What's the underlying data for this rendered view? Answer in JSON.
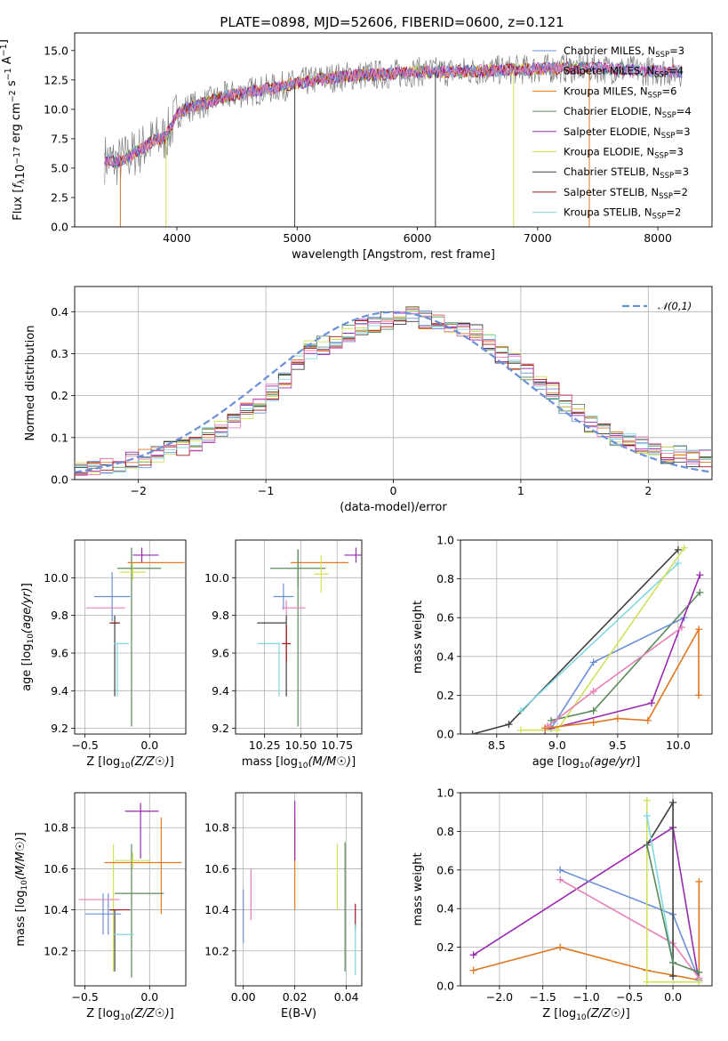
{
  "figure": {
    "title": "PLATE=0898, MJD=52606, FIBERID=0600, z=0.121"
  },
  "palette": [
    "#6b8fd8",
    "#e07820",
    "#5a8a5a",
    "#9a28b0",
    "#d4e05a",
    "#404040",
    "#a01818",
    "#80d8e0",
    "#e680b8",
    "#7f7f7f"
  ],
  "legend_spectrum": [
    {
      "name": "Chabrier MILES, N<sub>SSP</sub>=3",
      "text": "Chabrier MILES, N_SSP=3",
      "color": "#6b8fd8"
    },
    {
      "name": "Salpeter MILES, N_SSP=4",
      "text": "Salpeter MILES, N_SSP=4",
      "color": "#e680b8"
    },
    {
      "name": "Kroupa MILES, N_SSP=6",
      "text": "Kroupa MILES, N_SSP=6",
      "color": "#e07820"
    },
    {
      "name": "Chabrier ELODIE, N_SSP=4",
      "text": "Chabrier ELODIE, N_SSP=4",
      "color": "#5a8a5a"
    },
    {
      "name": "Salpeter ELODIE, N_SSP=3",
      "text": "Salpeter ELODIE, N_SSP=3",
      "color": "#9a28b0"
    },
    {
      "name": "Kroupa ELODIE, N_SSP=3",
      "text": "Kroupa ELODIE, N_SSP=3",
      "color": "#d4e05a"
    },
    {
      "name": "Chabrier STELIB, N_SSP=3",
      "text": "Chabrier STELIB, N_SSP=3",
      "color": "#404040"
    },
    {
      "name": "Salpeter STELIB, N_SSP=2",
      "text": "Salpeter STELIB, N_SSP=2",
      "color": "#a01818"
    },
    {
      "name": "Kroupa STELIB, N_SSP=2",
      "text": "Kroupa STELIB, N_SSP=2",
      "color": "#80d8e0"
    }
  ],
  "chart_data": [
    {
      "type": "line",
      "panel": "spectrum",
      "xlabel": "wavelength [Angstrom, rest frame]",
      "ylabel": "Flux [f_λ 10^-17 erg cm^-2 s^-1 A^-1]",
      "xlim": [
        3150,
        8450
      ],
      "ylim": [
        0,
        16.5
      ],
      "xticks": [
        4000,
        5000,
        6000,
        7000,
        8000
      ],
      "yticks": [
        0.0,
        2.5,
        5.0,
        7.5,
        10.0,
        12.5,
        15.0
      ],
      "continuum": {
        "x": [
          3400,
          3500,
          3600,
          3700,
          3800,
          3900,
          3950,
          4000,
          4100,
          4200,
          4400,
          4600,
          4800,
          5000,
          5200,
          5500,
          5800,
          6000,
          6300,
          6600,
          6900,
          7200,
          7500,
          7800,
          8200
        ],
        "y": [
          5.8,
          5.5,
          6.0,
          6.6,
          7.3,
          7.6,
          8.4,
          9.6,
          10.2,
          10.4,
          11.1,
          11.5,
          11.8,
          12.2,
          12.6,
          12.9,
          13.0,
          13.2,
          13.2,
          13.3,
          13.4,
          13.5,
          13.5,
          13.3,
          13.2
        ]
      },
      "drops": [
        {
          "x": 3530,
          "series": "Kroupa MILES"
        },
        {
          "x": 3910,
          "series": "Kroupa ELODIE"
        },
        {
          "x": 4980,
          "series": "Chabrier STELIB"
        },
        {
          "x": 6150,
          "series": "Chabrier STELIB"
        },
        {
          "x": 6800,
          "series": "Kroupa ELODIE"
        },
        {
          "x": 7430,
          "series": "Kroupa MILES"
        }
      ],
      "grid": false,
      "legend_position": "top-right"
    },
    {
      "type": "step",
      "panel": "residual-distribution",
      "xlabel": "(data-model)/error",
      "ylabel": "Normed distribution",
      "xlim": [
        -2.5,
        2.5
      ],
      "ylim": [
        0,
        0.46
      ],
      "xticks": [
        -2,
        -1,
        0,
        1,
        2
      ],
      "yticks": [
        0.0,
        0.1,
        0.2,
        0.3,
        0.4
      ],
      "bin_width": 0.1,
      "bins_start": -2.5,
      "base_values": [
        0.03,
        0.03,
        0.03,
        0.04,
        0.05,
        0.05,
        0.06,
        0.07,
        0.08,
        0.09,
        0.11,
        0.12,
        0.14,
        0.16,
        0.18,
        0.21,
        0.24,
        0.28,
        0.31,
        0.32,
        0.33,
        0.35,
        0.36,
        0.37,
        0.38,
        0.38,
        0.39,
        0.38,
        0.37,
        0.37,
        0.36,
        0.35,
        0.33,
        0.3,
        0.28,
        0.26,
        0.23,
        0.21,
        0.18,
        0.16,
        0.13,
        0.11,
        0.1,
        0.09,
        0.08,
        0.07,
        0.06,
        0.06,
        0.05,
        0.05
      ],
      "reference_curve": {
        "label": "𝒩(0,1)",
        "color": "#6b8fd8",
        "style": "dashed"
      },
      "grid": true,
      "legend_position": "top-right"
    },
    {
      "type": "errorbar",
      "panel": "age-vs-Z",
      "xlabel": "Z [log10(Z/Z_sun)]",
      "ylabel": "age [log10(age/yr)]",
      "xlim": [
        -0.58,
        0.28
      ],
      "ylim": [
        9.17,
        10.2
      ],
      "xticks": [
        -0.5,
        0.0
      ],
      "yticks": [
        9.2,
        9.4,
        9.6,
        9.8,
        10.0
      ],
      "points": [
        {
          "color": "#6b8fd8",
          "x": -0.29,
          "y": 9.9,
          "xerr": 0.14,
          "yerr": 0.13
        },
        {
          "color": "#e680b8",
          "x": -0.34,
          "y": 9.84,
          "xerr": 0.15,
          "yerr": 0.0
        },
        {
          "color": "#e07820",
          "x": 0.05,
          "y": 10.08,
          "xerr": 0.22,
          "yerr": 0.0
        },
        {
          "color": "#5a8a5a",
          "x": -0.08,
          "y": 10.05,
          "xerr": 0.17,
          "yerr": 0.0
        },
        {
          "color": "#9a28b0",
          "x": -0.03,
          "y": 10.12,
          "xerr": 0.1,
          "yerr": 0.0
        },
        {
          "color": "#d4e05a",
          "x": -0.13,
          "y": 10.03,
          "xerr": 0.1,
          "yerr": 0.04
        },
        {
          "color": "#404040",
          "x": -0.27,
          "y": 9.76,
          "xerr": 0.04,
          "yerr": 0.0
        },
        {
          "color": "#a01818",
          "x": -0.27,
          "y": 9.76,
          "xerr": 0.03,
          "yerr": 0.0
        },
        {
          "color": "#80d8e0",
          "x": -0.22,
          "y": 9.65,
          "xerr": 0.06,
          "yerr": 0.0
        }
      ],
      "vlines": [
        {
          "color": "#404040",
          "x": -0.27,
          "y0": 9.37,
          "y1": 9.8
        },
        {
          "color": "#80d8e0",
          "x": -0.25,
          "y0": 9.37,
          "y1": 9.65
        },
        {
          "color": "#5a8a5a",
          "x": -0.14,
          "y0": 9.21,
          "y1": 10.16
        },
        {
          "color": "#9a28b0",
          "x": -0.06,
          "y0": 10.08,
          "y1": 10.16
        }
      ],
      "grid": true
    },
    {
      "type": "errorbar",
      "panel": "age-vs-mass",
      "xlabel": "mass [log10(M/M_sun)]",
      "ylabel": "",
      "xlim": [
        10.05,
        10.92
      ],
      "ylim": [
        9.17,
        10.2
      ],
      "xticks": [
        10.25,
        10.5,
        10.75
      ],
      "yticks": [
        9.2,
        9.4,
        9.6,
        9.8,
        10.0
      ],
      "points": [
        {
          "color": "#6b8fd8",
          "x": 10.38,
          "y": 9.9,
          "xerr": 0.07,
          "yerr": 0.07
        },
        {
          "color": "#e680b8",
          "x": 10.45,
          "y": 9.84,
          "xerr": 0.08,
          "yerr": 0.0
        },
        {
          "color": "#e07820",
          "x": 10.63,
          "y": 10.08,
          "xerr": 0.2,
          "yerr": 0.0
        },
        {
          "color": "#5a8a5a",
          "x": 10.48,
          "y": 10.05,
          "xerr": 0.19,
          "yerr": 0.1
        },
        {
          "color": "#9a28b0",
          "x": 10.88,
          "y": 10.12,
          "xerr": 0.08,
          "yerr": 0.04
        },
        {
          "color": "#d4e05a",
          "x": 10.64,
          "y": 10.02,
          "xerr": 0.05,
          "yerr": 0.1
        },
        {
          "color": "#404040",
          "x": 10.3,
          "y": 9.76,
          "xerr": 0.1,
          "yerr": 0.0
        },
        {
          "color": "#a01818",
          "x": 10.4,
          "y": 9.65,
          "xerr": 0.03,
          "yerr": 0.1
        },
        {
          "color": "#80d8e0",
          "x": 10.28,
          "y": 9.65,
          "xerr": 0.08,
          "yerr": 0.0
        }
      ],
      "vlines": [
        {
          "color": "#404040",
          "x": 10.4,
          "y0": 9.37,
          "y1": 9.8
        },
        {
          "color": "#80d8e0",
          "x": 10.35,
          "y0": 9.37,
          "y1": 9.65
        },
        {
          "color": "#5a8a5a",
          "x": 10.48,
          "y0": 9.21,
          "y1": 10.15
        },
        {
          "color": "#e680b8",
          "x": 10.4,
          "y0": 9.8,
          "y1": 9.88
        }
      ],
      "grid": true
    },
    {
      "type": "line",
      "panel": "mass-weight-vs-age",
      "xlabel": "age [log10(age/yr)]",
      "ylabel": "mass weight",
      "xlim": [
        8.2,
        10.28
      ],
      "ylim": [
        0,
        1.0
      ],
      "xticks": [
        8.5,
        9.0,
        9.5,
        10.0
      ],
      "yticks": [
        0.0,
        0.2,
        0.4,
        0.6,
        0.8,
        1.0
      ],
      "series": [
        {
          "color": "#404040",
          "x": [
            8.3,
            8.6,
            10.0
          ],
          "y": [
            0.0,
            0.05,
            0.95
          ]
        },
        {
          "color": "#80d8e0",
          "x": [
            8.7,
            10.0
          ],
          "y": [
            0.12,
            0.88
          ]
        },
        {
          "color": "#5a8a5a",
          "x": [
            8.95,
            9.3,
            10.18
          ],
          "y": [
            0.07,
            0.12,
            0.73
          ]
        },
        {
          "color": "#6b8fd8",
          "x": [
            8.95,
            9.3,
            10.05
          ],
          "y": [
            0.03,
            0.37,
            0.6
          ]
        },
        {
          "color": "#9a28b0",
          "x": [
            8.9,
            9.78,
            10.18
          ],
          "y": [
            0.02,
            0.16,
            0.82
          ]
        },
        {
          "color": "#d4e05a",
          "x": [
            8.7,
            9.0,
            10.05
          ],
          "y": [
            0.02,
            0.02,
            0.96
          ]
        },
        {
          "color": "#e680b8",
          "x": [
            8.92,
            9.3,
            10.03
          ],
          "y": [
            0.04,
            0.22,
            0.55
          ]
        },
        {
          "color": "#e07820",
          "x": [
            8.9,
            9.3,
            9.5,
            9.75,
            10.17,
            10.17
          ],
          "y": [
            0.03,
            0.06,
            0.08,
            0.07,
            0.54,
            0.2
          ]
        }
      ],
      "grid": true
    },
    {
      "type": "errorbar",
      "panel": "mass-vs-Z",
      "xlabel": "Z [log10(Z/Z_sun)]",
      "ylabel": "mass [log10(M/M_sun)]",
      "xlim": [
        -0.58,
        0.28
      ],
      "ylim": [
        10.03,
        10.97
      ],
      "xticks": [
        -0.5,
        0.0
      ],
      "yticks": [
        10.2,
        10.4,
        10.6,
        10.8
      ],
      "points": [
        {
          "color": "#6b8fd8",
          "x": -0.36,
          "y": 10.38,
          "xerr": 0.14,
          "yerr": 0.1
        },
        {
          "color": "#e680b8",
          "x": -0.39,
          "y": 10.45,
          "xerr": 0.16,
          "yerr": 0.0
        },
        {
          "color": "#e07820",
          "x": -0.05,
          "y": 10.63,
          "xerr": 0.3,
          "yerr": 0.0
        },
        {
          "color": "#5a8a5a",
          "x": -0.08,
          "y": 10.48,
          "xerr": 0.19,
          "yerr": 0.0
        },
        {
          "color": "#9a28b0",
          "x": -0.06,
          "y": 10.88,
          "xerr": 0.13,
          "yerr": 0.0
        },
        {
          "color": "#d4e05a",
          "x": -0.13,
          "y": 10.64,
          "xerr": 0.14,
          "yerr": 0.04
        },
        {
          "color": "#404040",
          "x": -0.27,
          "y": 10.4,
          "xerr": 0.04,
          "yerr": 0.0
        },
        {
          "color": "#a01818",
          "x": -0.23,
          "y": 10.4,
          "xerr": 0.08,
          "yerr": 0.0
        },
        {
          "color": "#80d8e0",
          "x": -0.2,
          "y": 10.28,
          "xerr": 0.08,
          "yerr": 0.0
        }
      ],
      "vlines": [
        {
          "color": "#404040",
          "x": -0.27,
          "y0": 10.1,
          "y1": 10.4
        },
        {
          "color": "#d4e05a",
          "x": -0.28,
          "y0": 10.1,
          "y1": 10.72
        },
        {
          "color": "#5a8a5a",
          "x": -0.14,
          "y0": 10.07,
          "y1": 10.72
        },
        {
          "color": "#9a28b0",
          "x": -0.07,
          "y0": 10.65,
          "y1": 10.92
        },
        {
          "color": "#e07820",
          "x": 0.09,
          "y0": 10.38,
          "y1": 10.85
        },
        {
          "color": "#6b8fd8",
          "x": -0.32,
          "y0": 10.28,
          "y1": 10.48
        }
      ],
      "grid": true
    },
    {
      "type": "errorbar",
      "panel": "mass-vs-EBV",
      "xlabel": "E(B-V)",
      "ylabel": "",
      "xlim": [
        -0.003,
        0.046
      ],
      "ylim": [
        10.03,
        10.97
      ],
      "xticks": [
        0.0,
        0.02,
        0.04
      ],
      "yticks": [
        10.2,
        10.4,
        10.6,
        10.8
      ],
      "vlines": [
        {
          "color": "#6b8fd8",
          "x": 0.0,
          "y0": 10.24,
          "y1": 10.5
        },
        {
          "color": "#e680b8",
          "x": 0.003,
          "y0": 10.35,
          "y1": 10.6
        },
        {
          "color": "#e07820",
          "x": 0.02,
          "y0": 10.4,
          "y1": 10.85
        },
        {
          "color": "#9a28b0",
          "x": 0.02,
          "y0": 10.64,
          "y1": 10.93
        },
        {
          "color": "#d4e05a",
          "x": 0.0365,
          "y0": 10.4,
          "y1": 10.72
        },
        {
          "color": "#5a8a5a",
          "x": 0.0395,
          "y0": 10.1,
          "y1": 10.73
        },
        {
          "color": "#a01818",
          "x": 0.0435,
          "y0": 10.3,
          "y1": 10.43
        },
        {
          "color": "#80d8e0",
          "x": 0.0435,
          "y0": 10.08,
          "y1": 10.33
        }
      ],
      "grid": true
    },
    {
      "type": "line",
      "panel": "mass-weight-vs-Z",
      "xlabel": "Z [log10(Z/Z_sun)]",
      "ylabel": "mass weight",
      "xlim": [
        -2.45,
        0.45
      ],
      "ylim": [
        0,
        1.0
      ],
      "xticks": [
        -2.0,
        -1.5,
        -1.0,
        -0.5,
        0.0
      ],
      "yticks": [
        0.0,
        0.2,
        0.4,
        0.6,
        0.8,
        1.0
      ],
      "series": [
        {
          "color": "#9a28b0",
          "x": [
            -2.3,
            0.0,
            0.3
          ],
          "y": [
            0.16,
            0.82,
            0.02
          ]
        },
        {
          "color": "#e07820",
          "x": [
            -2.3,
            -1.3,
            -0.3,
            0.3,
            0.3
          ],
          "y": [
            0.08,
            0.2,
            0.08,
            0.03,
            0.54
          ]
        },
        {
          "color": "#6b8fd8",
          "x": [
            -1.3,
            0.0,
            0.3
          ],
          "y": [
            0.6,
            0.37,
            0.03
          ]
        },
        {
          "color": "#e680b8",
          "x": [
            -1.3,
            0.0,
            0.3
          ],
          "y": [
            0.55,
            0.22,
            0.04
          ]
        },
        {
          "color": "#d4e05a",
          "x": [
            -0.3,
            -0.3,
            0.3
          ],
          "y": [
            0.96,
            0.02,
            0.02
          ]
        },
        {
          "color": "#404040",
          "x": [
            -0.3,
            0.0,
            0.0
          ],
          "y": [
            0.73,
            0.95,
            0.05
          ]
        },
        {
          "color": "#80d8e0",
          "x": [
            -0.3,
            0.0
          ],
          "y": [
            0.88,
            0.12
          ]
        },
        {
          "color": "#5a8a5a",
          "x": [
            -0.3,
            0.0,
            0.3
          ],
          "y": [
            0.73,
            0.12,
            0.07
          ]
        }
      ],
      "grid": true
    }
  ]
}
